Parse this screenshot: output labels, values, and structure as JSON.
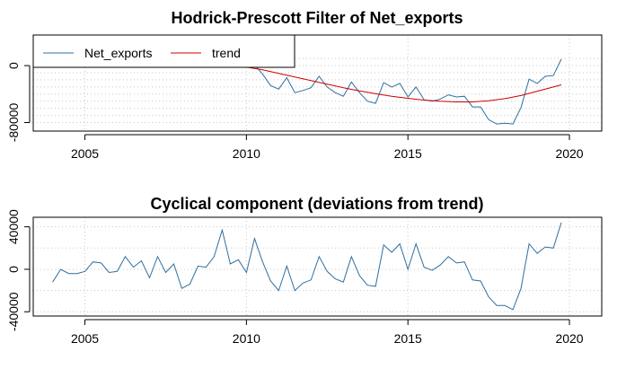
{
  "chart_data": [
    {
      "type": "line",
      "title": "Hodrick-Prescott Filter of Net_exports",
      "xlabel": "",
      "ylabel": "",
      "xlim": [
        2003.4,
        2021.0
      ],
      "ylim": [
        -92000,
        43000
      ],
      "x_ticks": [
        2005,
        2010,
        2015,
        2020
      ],
      "x_tick_labels": [
        "2005",
        "2010",
        "2015",
        "2020"
      ],
      "y_ticks": [
        0,
        -80000
      ],
      "y_tick_labels": [
        "0",
        "-80000"
      ],
      "grid": true,
      "legend": {
        "position": "top-left",
        "entries": [
          "Net_exports",
          "trend"
        ]
      },
      "series": [
        {
          "name": "Net_exports",
          "color": "#2f6f9f",
          "x": [
            2008.0,
            2010.0,
            2010.25,
            2010.5,
            2010.75,
            2011.0,
            2011.25,
            2011.5,
            2011.75,
            2012.0,
            2012.25,
            2012.5,
            2012.75,
            2013.0,
            2013.25,
            2013.5,
            2013.75,
            2014.0,
            2014.25,
            2014.5,
            2014.75,
            2015.0,
            2015.25,
            2015.5,
            2015.75,
            2016.0,
            2016.25,
            2016.5,
            2016.75,
            2017.0,
            2017.25,
            2017.5,
            2017.75,
            2018.0,
            2018.25,
            2018.5,
            2018.75,
            2019.0,
            2019.25,
            2019.5,
            2019.75
          ],
          "y": [
            -1500,
            2000,
            1000,
            -12000,
            -28000,
            -33000,
            -17000,
            -38000,
            -35000,
            -31000,
            -15000,
            -30000,
            -38000,
            -43000,
            -23000,
            -38000,
            -50000,
            -53000,
            -24000,
            -30000,
            -25000,
            -44000,
            -30000,
            -48000,
            -50000,
            -47000,
            -41000,
            -44000,
            -43000,
            -58000,
            -58000,
            -76000,
            -82000,
            -81000,
            -82000,
            -59000,
            -19000,
            -25000,
            -15000,
            -14000,
            9000
          ]
        },
        {
          "name": "trend",
          "color": "#cc0000",
          "x": [
            2010.0,
            2010.5,
            2011.0,
            2011.5,
            2012.0,
            2012.5,
            2013.0,
            2013.5,
            2014.0,
            2014.5,
            2015.0,
            2015.5,
            2016.0,
            2016.5,
            2017.0,
            2017.5,
            2018.0,
            2018.5,
            2019.0,
            2019.5,
            2019.75
          ],
          "y": [
            -2000,
            -6000,
            -11000,
            -16000,
            -21000,
            -26000,
            -31000,
            -35500,
            -39500,
            -43000,
            -46000,
            -48500,
            -50000,
            -51000,
            -51000,
            -49500,
            -46500,
            -42000,
            -36000,
            -30000,
            -27000
          ]
        }
      ]
    },
    {
      "type": "line",
      "title": "Cyclical component (deviations from trend)",
      "xlabel": "",
      "ylabel": "",
      "xlim": [
        2003.4,
        2021.0
      ],
      "ylim": [
        -44000,
        49000
      ],
      "x_ticks": [
        2005,
        2010,
        2015,
        2020
      ],
      "x_tick_labels": [
        "2005",
        "2010",
        "2015",
        "2020"
      ],
      "y_ticks": [
        40000,
        0,
        -40000
      ],
      "y_tick_labels": [
        "40000",
        "0",
        "-40000"
      ],
      "grid": true,
      "series": [
        {
          "color": "#2f6f9f",
          "x": [
            2004.0,
            2004.25,
            2004.5,
            2004.75,
            2005.0,
            2005.25,
            2005.5,
            2005.75,
            2006.0,
            2006.25,
            2006.5,
            2006.75,
            2007.0,
            2007.25,
            2007.5,
            2007.75,
            2008.0,
            2008.25,
            2008.5,
            2008.75,
            2009.0,
            2009.25,
            2009.5,
            2009.75,
            2010.0,
            2010.25,
            2010.5,
            2010.75,
            2011.0,
            2011.25,
            2011.5,
            2011.75,
            2012.0,
            2012.25,
            2012.5,
            2012.75,
            2013.0,
            2013.25,
            2013.5,
            2013.75,
            2014.0,
            2014.25,
            2014.5,
            2014.75,
            2015.0,
            2015.25,
            2015.5,
            2015.75,
            2016.0,
            2016.25,
            2016.5,
            2016.75,
            2017.0,
            2017.25,
            2017.5,
            2017.75,
            2018.0,
            2018.25,
            2018.5,
            2018.75,
            2019.0,
            2019.25,
            2019.5,
            2019.75
          ],
          "y": [
            -12000,
            0,
            -4000,
            -4000,
            -2000,
            7000,
            6000,
            -3000,
            -2000,
            12000,
            2000,
            8000,
            -8000,
            12000,
            -3000,
            5000,
            -18000,
            -14000,
            3000,
            2000,
            12000,
            37000,
            5000,
            9000,
            -3000,
            29000,
            7000,
            -11000,
            -20000,
            3000,
            -20000,
            -13000,
            -10000,
            12000,
            -2000,
            -9000,
            -12000,
            12000,
            -6000,
            -15000,
            -16000,
            23000,
            16000,
            24000,
            0,
            24000,
            2000,
            -1000,
            4000,
            12000,
            6000,
            7000,
            -10000,
            -11000,
            -26000,
            -34000,
            -34000,
            -38000,
            -18000,
            24000,
            15000,
            21000,
            20000,
            44000
          ]
        }
      ]
    }
  ]
}
